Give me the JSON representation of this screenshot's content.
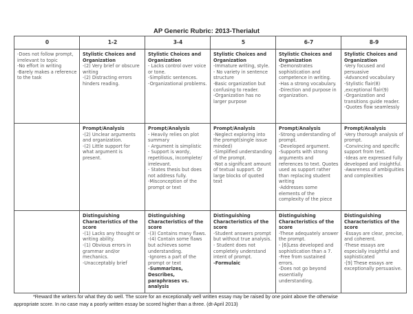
{
  "title": "AP Generic Rubric: 2013-Therialut",
  "columns": [
    "0",
    "1-2",
    "3-4",
    "5",
    "6-7",
    "8-9"
  ],
  "rows": [
    [
      {
        "heading": "",
        "lines": [
          "-Does not follow prompt, irrelevant to topic",
          "-No effort in writing",
          "-Barely makes a reference to the task"
        ]
      },
      {
        "heading": "Stylistic Choices and Organization",
        "lines": [
          "-(2) Very brief or obscure writing",
          "-(2) Distracting errors hinders reading."
        ]
      },
      {
        "heading": "Stylistic Choices and Organization",
        "lines": [
          "- Lacks control over voice or tone.",
          "-Simplistic sentences.",
          "-Organizational problems."
        ]
      },
      {
        "heading": "Stylistic Choices and Organization",
        "lines": [
          "-Immature writing, style.",
          "- No variety in sentence structure",
          "-Basic organization but confusing to reader.",
          "-Organization has no larger purpose"
        ]
      },
      {
        "heading": "Stylistic Choices and Organization",
        "lines": [
          "-Demonstrates sophistication and competence in writing.",
          "-Has a strong vocabulary.",
          "-Direction and purpose in organization."
        ]
      },
      {
        "heading": "Stylistic Choices and Organization",
        "lines": [
          "-Very focused and persuasive",
          "-Advanced vocabulary",
          "-Stylistic flair(8) ,exceptional flair(9)",
          "-Organization and transitions guide reader.",
          "-Quotes flow seamlessly"
        ]
      }
    ],
    [
      {
        "heading": "",
        "lines": []
      },
      {
        "heading": "Prompt/Analysis",
        "lines": [
          "-(2) Unclear arguments and organization.",
          "-(2) Little support for what argument is present."
        ]
      },
      {
        "heading": "Prompt/Analysis",
        "lines": [
          "- Heavily relies on plot summary",
          "- Argument is simplistic",
          "- Support is wordy, repetitious, incomplete/ irrelevant.",
          "- States thesis but does not address fully.",
          "-Misconception of the prompt or text"
        ]
      },
      {
        "heading": "Prompt/Analysis",
        "lines": [
          "-Neglect exploring into the prompt(single issue minded)",
          "-Simplified understanding of the prompt.",
          "-Not a significant amount of textual support. Or large blocks of quoted text"
        ]
      },
      {
        "heading": "Prompt/Analysis",
        "lines": [
          "-Strong understanding of prompt.",
          "-Developed argument.",
          "-Supports with strong arguments and references to text. Quotes used as support rather than replacing student writing",
          "-Addresses some elements of the complexity of the piece"
        ]
      },
      {
        "heading": "Prompt/Analysis",
        "lines": [
          "-Very thorough analysis of prompt.",
          "-Convincing and specific support from text.",
          "-Ideas are expressed fully developed and insightful.",
          "-Awareness of ambiguities and complexities"
        ]
      }
    ],
    [
      {
        "heading": "",
        "lines": []
      },
      {
        "heading": "Distinguishing Characteristics of the score",
        "lines": [
          "-(1) Lacks any thought or writing ability.",
          "-(1) Obvious errors in grammar and/or mechanics.",
          "-Unacceptably brief"
        ]
      },
      {
        "heading": "Distinguishing Characteristics of the score",
        "lines": [
          "-(3) Contains many flaws.",
          "-(4) Contain some flaws but achieves some understanding.",
          "-Ignores a part of the prompt or text"
        ],
        "bold_lines": [
          "-Summarizes, Describes, paraphrases vs. analysis"
        ]
      },
      {
        "heading": "Distinguishing Characteristics of the score",
        "lines": [
          "-Student answers prompt but without true analysis.",
          "- Student does not completely understand intent of prompt."
        ],
        "bold_lines": [
          "-Formulaic"
        ]
      },
      {
        "heading": "Distinguishing Characteristics of the score",
        "lines": [
          "-These adequately answer the prompt.",
          "- [6]Less developed and sophistication than a 7.",
          "-Free from sustained errors.",
          "-Does not go beyond essentially understanding."
        ]
      },
      {
        "heading": "Distinguishing Characteristics of the score",
        "lines": [
          "-Essays are clear, precise, and coherent.",
          " -These essays are especially insightful and sophisticated",
          "-[9] These essays are exceptionally persuasive."
        ]
      }
    ]
  ],
  "footnote": {
    "line1": "*Reward the writers for what they do well. The score for an exceptionally well written essay may be raised by one point above the otherwise",
    "line2": "appropriate score. In no case may a poorly written essay be scored higher than a three.  (dt-April 2013)"
  }
}
